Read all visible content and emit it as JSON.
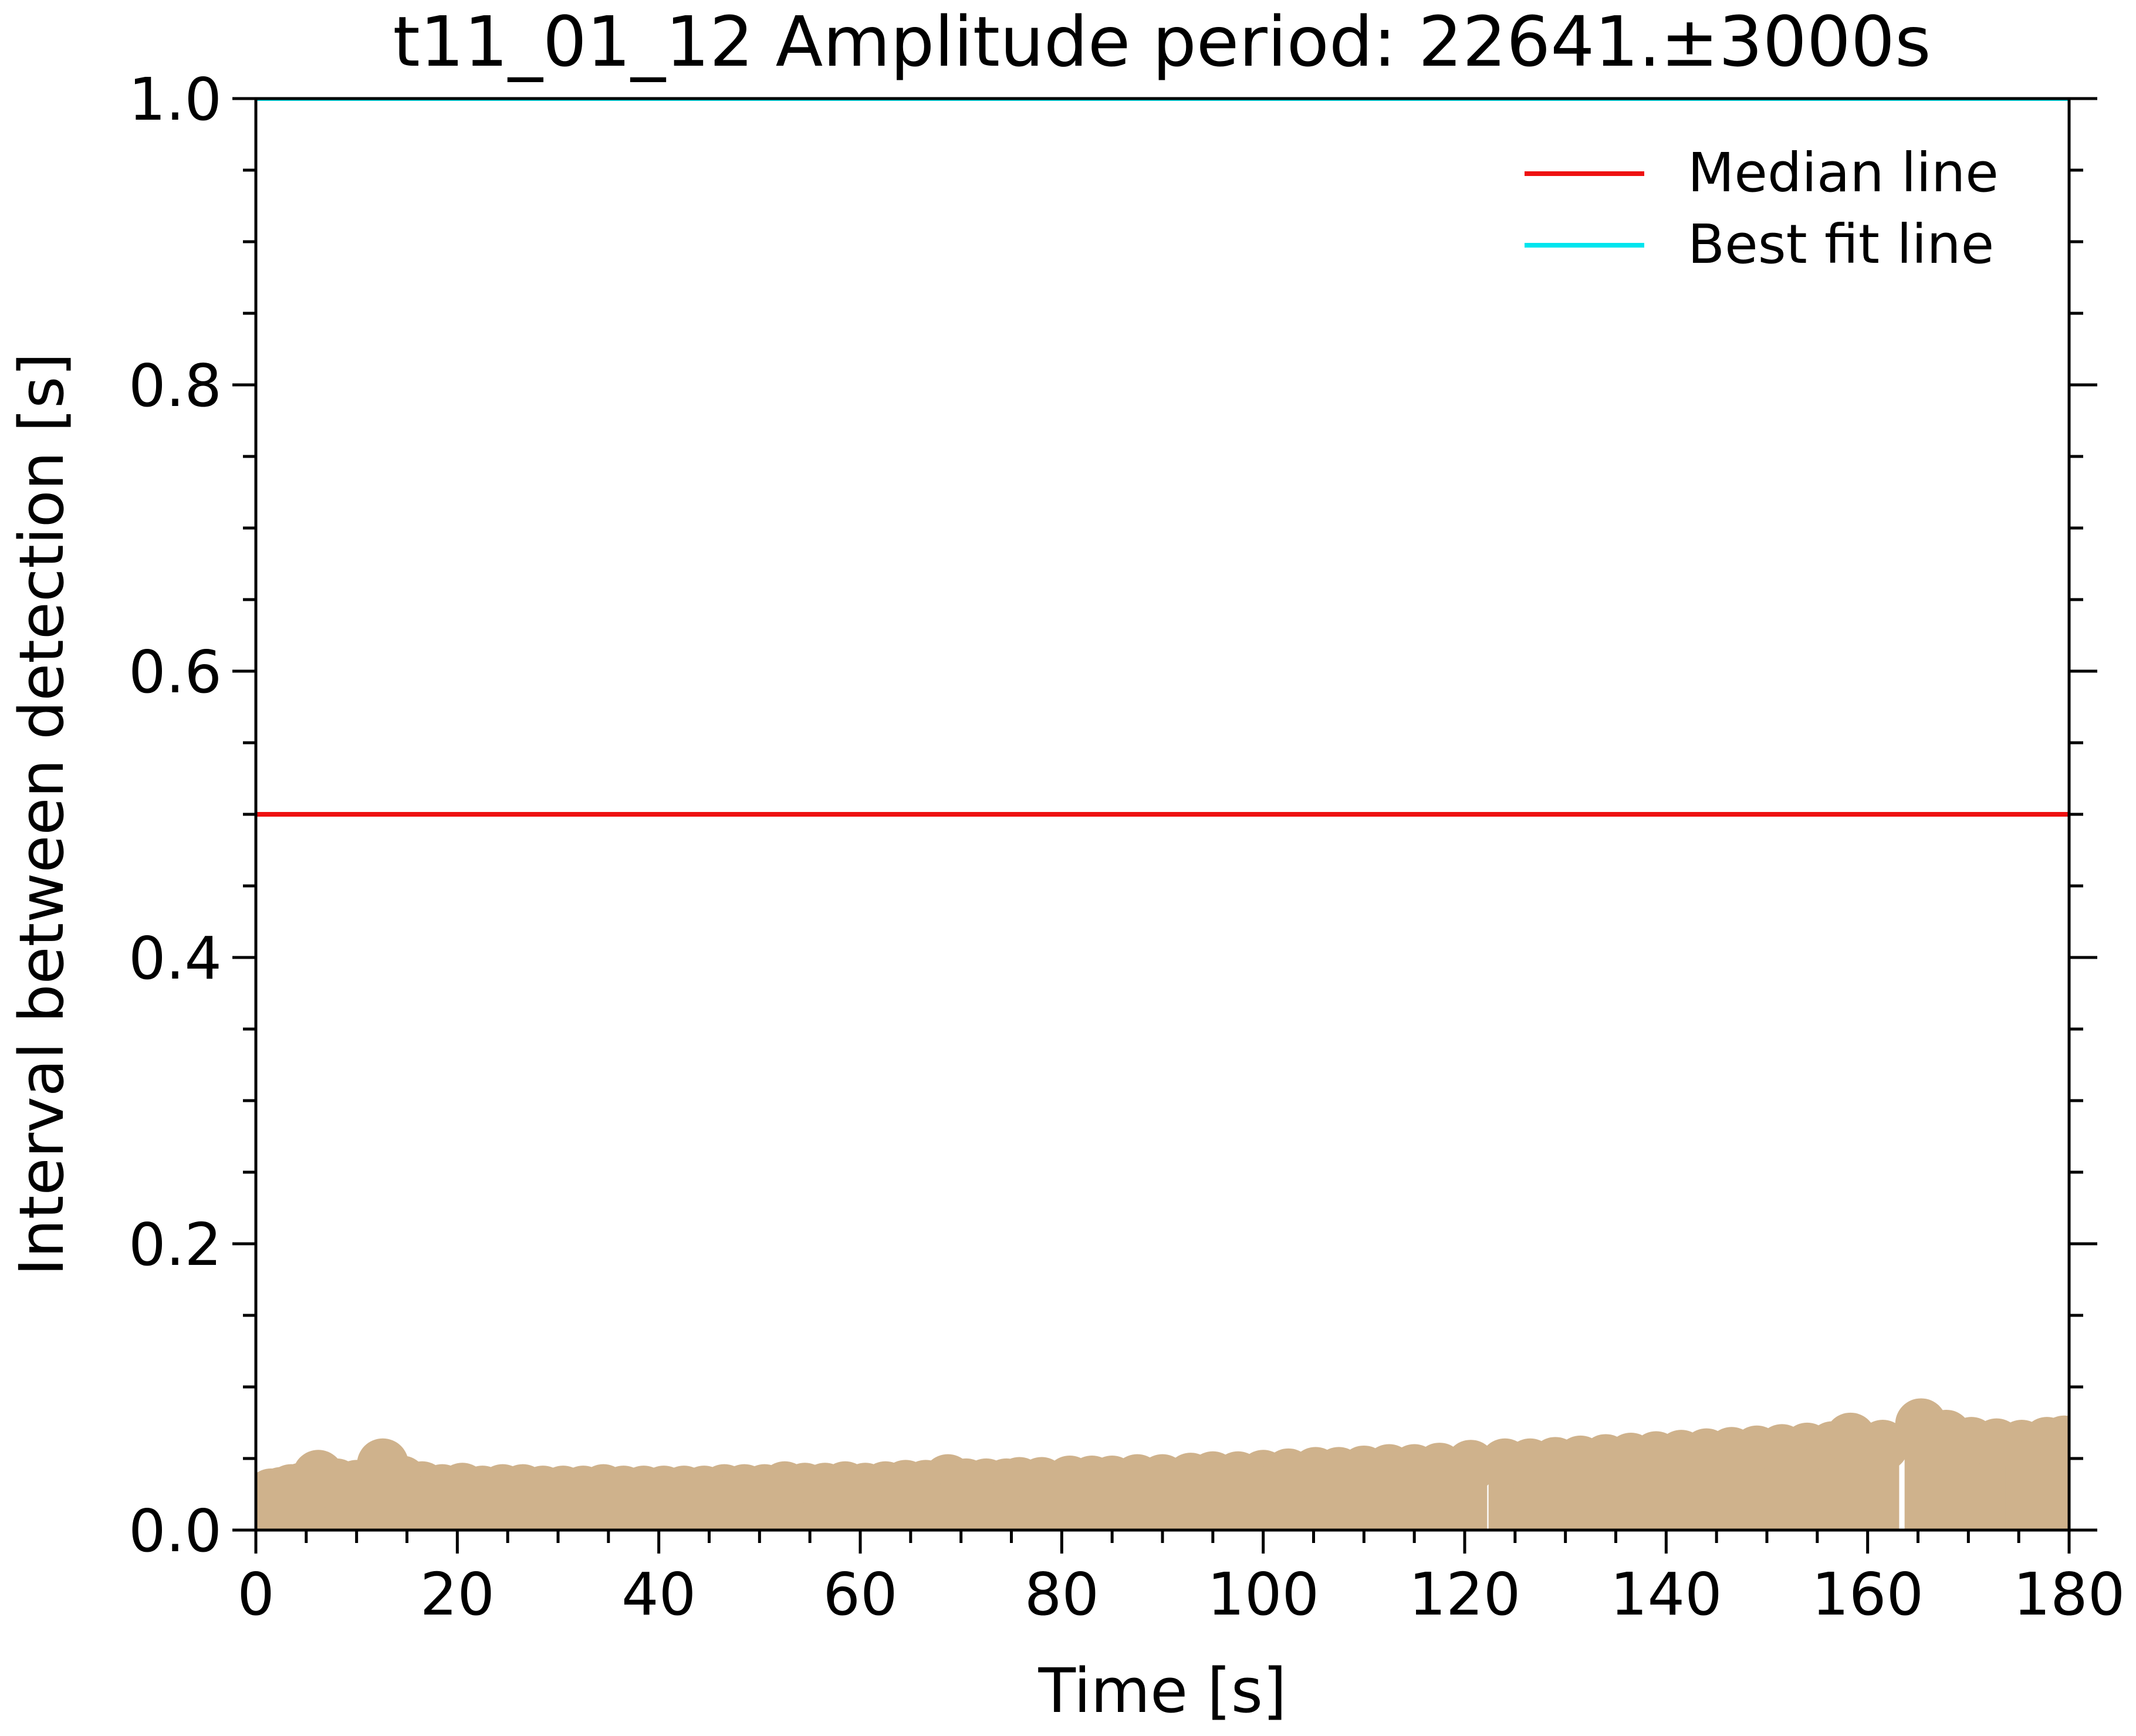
{
  "chart_data": {
    "type": "scatter",
    "title": "t11_01_12 Amplitude period: 22641.±3000s",
    "xlabel": "Time [s]",
    "ylabel": "Interval between detection [s]",
    "xlim": [
      0,
      180
    ],
    "ylim": [
      0,
      1.0
    ],
    "x_ticks": [
      "0",
      "20",
      "40",
      "60",
      "80",
      "100",
      "120",
      "140",
      "160",
      "180"
    ],
    "y_ticks": [
      "0.0",
      "0.2",
      "0.4",
      "0.6",
      "0.8",
      "1.0"
    ],
    "grid": false,
    "legend_position": "top-right",
    "lines": [
      {
        "name": "Median line",
        "y": 0.5,
        "color": "#ee1111"
      },
      {
        "name": "Best fit line",
        "y": 1.0,
        "color": "#00e5ee"
      }
    ],
    "points": {
      "color": "#cfb28c",
      "x": [
        0.3,
        1.5,
        2.5,
        3.5,
        4.5,
        6.2,
        8.0,
        10.0,
        12.6,
        14.5,
        16.5,
        18.5,
        20.5,
        22.5,
        24.5,
        26.5,
        28.5,
        30.5,
        32.5,
        34.5,
        36.5,
        38.5,
        40.5,
        42.5,
        44.5,
        46.5,
        48.5,
        50.5,
        52.5,
        54.5,
        56.5,
        58.5,
        60.5,
        62.5,
        64.5,
        66.5,
        68.7,
        70.5,
        72.5,
        74.5,
        75.8,
        78.0,
        80.8,
        83.0,
        85.0,
        87.5,
        90.0,
        92.8,
        95.0,
        97.5,
        100.0,
        102.5,
        105.2,
        107.5,
        110.0,
        112.5,
        115.0,
        117.5,
        120.6,
        124.0,
        126.5,
        129.0,
        131.5,
        134.0,
        136.5,
        139.0,
        141.5,
        144.0,
        146.5,
        149.0,
        151.5,
        154.0,
        156.5,
        158.3,
        161.5,
        165.3,
        167.8,
        170.3,
        172.8,
        175.3,
        177.8,
        179.5
      ],
      "y": [
        0.022,
        0.025,
        0.026,
        0.028,
        0.029,
        0.038,
        0.032,
        0.031,
        0.046,
        0.034,
        0.03,
        0.028,
        0.029,
        0.027,
        0.028,
        0.028,
        0.027,
        0.027,
        0.027,
        0.028,
        0.027,
        0.027,
        0.027,
        0.027,
        0.027,
        0.028,
        0.028,
        0.028,
        0.03,
        0.029,
        0.029,
        0.03,
        0.029,
        0.03,
        0.031,
        0.031,
        0.035,
        0.032,
        0.032,
        0.032,
        0.033,
        0.033,
        0.034,
        0.034,
        0.034,
        0.035,
        0.035,
        0.036,
        0.037,
        0.037,
        0.038,
        0.039,
        0.04,
        0.04,
        0.041,
        0.042,
        0.042,
        0.043,
        0.045,
        0.046,
        0.046,
        0.047,
        0.048,
        0.049,
        0.05,
        0.051,
        0.052,
        0.053,
        0.054,
        0.055,
        0.056,
        0.057,
        0.058,
        0.064,
        0.059,
        0.074,
        0.066,
        0.061,
        0.06,
        0.059,
        0.061,
        0.062
      ]
    }
  }
}
